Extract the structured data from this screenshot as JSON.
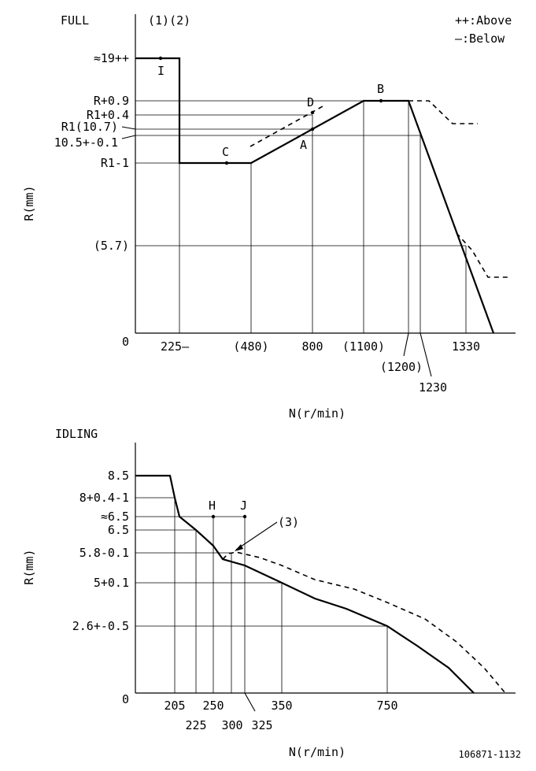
{
  "full_panel": {
    "title": "FULL",
    "legend_above": "++:Above",
    "legend_below": "—:Below",
    "notes": "(1)(2)",
    "y_labels": {
      "l19": "≈19++",
      "r09": "R+0.9",
      "r104": "R1+0.4",
      "r1_107": "R1(10.7)",
      "r105": "10.5+-0.1",
      "r1m1": "R1-1",
      "r57": "(5.7)",
      "zero": "0"
    },
    "x_labels": {
      "x225": "225—",
      "x480": "(480)",
      "x800": "800",
      "x1100": "(1100)",
      "x1200": "(1200)",
      "x1230": "1230",
      "x1330": "1330"
    },
    "points": {
      "I": "I",
      "A": "A",
      "B": "B",
      "C": "C",
      "D": "D"
    },
    "y_axis_title": "R(mm)",
    "x_axis_title": "N(r/min)"
  },
  "idling_panel": {
    "title": "IDLING",
    "note": "(3)",
    "y_labels": {
      "l85": "8.5",
      "l8": "8+0.4-1",
      "l65a": "≈6.5",
      "l65": "6.5",
      "l58": "5.8-0.1",
      "l5": "5+0.1",
      "l26": "2.6+-0.5",
      "zero": "0"
    },
    "x_labels": {
      "x205": "205",
      "x225": "225",
      "x250": "250",
      "x300": "300",
      "x325": "325",
      "x350": "350",
      "x750": "750"
    },
    "points": {
      "H": "H",
      "J": "J"
    },
    "y_axis_title": "R(mm)",
    "x_axis_title": "N(r/min)"
  },
  "drawing_number": "106871-1132"
}
